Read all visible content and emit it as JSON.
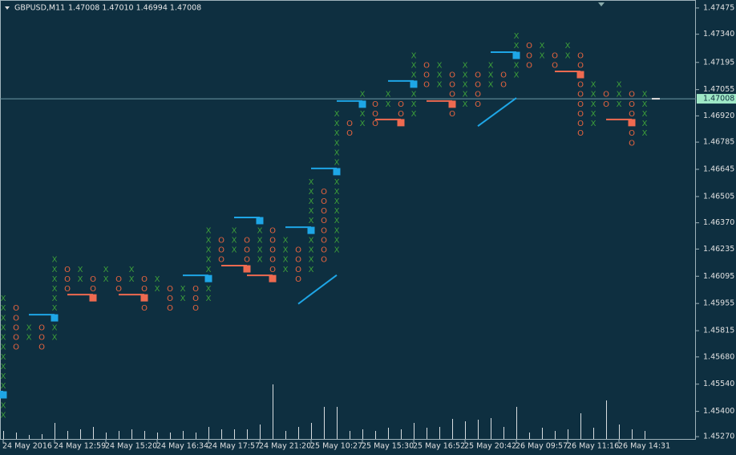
{
  "chart_data": {
    "type": "point-and-figure",
    "symbol": "GBPUSD,M11",
    "quote": "1.47008 1.47010 1.46994 1.47008",
    "box_size": 0.0005,
    "ylim": [
      1.45254,
      1.47516
    ],
    "yticks": [
      1.47475,
      {
        "value": 1.4734,
        "label": "1.47340"
      },
      1.47195,
      1.47055,
      {
        "value": 1.4692,
        "label": "1.46920"
      },
      1.46785,
      1.46645,
      1.46505,
      {
        "value": 1.4637,
        "label": "1.46370"
      },
      1.46235,
      1.46095,
      1.45955,
      1.45815,
      {
        "value": 1.4568,
        "label": "1.45680"
      },
      {
        "value": 1.4554,
        "label": "1.45540"
      },
      {
        "value": 1.454,
        "label": "1.45400"
      },
      {
        "value": 1.4527,
        "label": "1.45270"
      }
    ],
    "current_price": 1.47008,
    "colors": {
      "X": "#3d9e3a",
      "O": "#e8643f",
      "up": "#1ea6e6",
      "down": "#ee6a50",
      "volume": "#d8dde0",
      "price_line": "#6d9aa5"
    },
    "categories": [
      "24 May 2016",
      null,
      null,
      null,
      "24 May 12:59",
      null,
      null,
      null,
      "24 May 15:20",
      null,
      null,
      null,
      "24 May 16:34",
      null,
      null,
      null,
      "24 May 17:57",
      null,
      null,
      null,
      "24 May 21:20",
      null,
      null,
      null,
      "25 May 10:27",
      null,
      null,
      null,
      "25 May 15:30",
      null,
      null,
      null,
      "25 May 16:52",
      null,
      null,
      null,
      "25 May 20:42",
      null,
      null,
      null,
      "26 May 09:57",
      null,
      null,
      null,
      "26 May 11:16",
      null,
      null,
      null,
      "26 May 14:31",
      null,
      null
    ],
    "columns": [
      {
        "type": "X",
        "high": 1.4598,
        "low": 1.4538
      },
      {
        "type": "O",
        "high": 1.4593,
        "low": 1.4573
      },
      {
        "type": "X",
        "high": 1.4583,
        "low": 1.4578
      },
      {
        "type": "O",
        "high": 1.4583,
        "low": 1.4573
      },
      {
        "type": "X",
        "high": 1.4618,
        "low": 1.4578
      },
      {
        "type": "O",
        "high": 1.4613,
        "low": 1.4603
      },
      {
        "type": "X",
        "high": 1.4613,
        "low": 1.4608
      },
      {
        "type": "O",
        "high": 1.4608,
        "low": 1.4598
      },
      {
        "type": "X",
        "high": 1.4613,
        "low": 1.4608
      },
      {
        "type": "O",
        "high": 1.4608,
        "low": 1.4603
      },
      {
        "type": "X",
        "high": 1.4613,
        "low": 1.4608
      },
      {
        "type": "O",
        "high": 1.4608,
        "low": 1.4593
      },
      {
        "type": "X",
        "high": 1.4608,
        "low": 1.4603
      },
      {
        "type": "O",
        "high": 1.4603,
        "low": 1.4593
      },
      {
        "type": "X",
        "high": 1.4603,
        "low": 1.4598
      },
      {
        "type": "O",
        "high": 1.4603,
        "low": 1.4593
      },
      {
        "type": "X",
        "high": 1.4633,
        "low": 1.4598
      },
      {
        "type": "O",
        "high": 1.4628,
        "low": 1.4618
      },
      {
        "type": "X",
        "high": 1.4633,
        "low": 1.4623
      },
      {
        "type": "O",
        "high": 1.4628,
        "low": 1.4618
      },
      {
        "type": "X",
        "high": 1.4633,
        "low": 1.4618
      },
      {
        "type": "O",
        "high": 1.4633,
        "low": 1.4613
      },
      {
        "type": "X",
        "high": 1.4628,
        "low": 1.4613
      },
      {
        "type": "O",
        "high": 1.4623,
        "low": 1.4608
      },
      {
        "type": "X",
        "high": 1.4658,
        "low": 1.4613
      },
      {
        "type": "O",
        "high": 1.4653,
        "low": 1.4618
      },
      {
        "type": "X",
        "high": 1.4693,
        "low": 1.4623
      },
      {
        "type": "O",
        "high": 1.4688,
        "low": 1.4683
      },
      {
        "type": "X",
        "high": 1.4703,
        "low": 1.4688
      },
      {
        "type": "O",
        "high": 1.4698,
        "low": 1.4688
      },
      {
        "type": "X",
        "high": 1.4703,
        "low": 1.4698
      },
      {
        "type": "O",
        "high": 1.4698,
        "low": 1.4693
      },
      {
        "type": "X",
        "high": 1.4723,
        "low": 1.4693
      },
      {
        "type": "O",
        "high": 1.4718,
        "low": 1.4708
      },
      {
        "type": "X",
        "high": 1.4718,
        "low": 1.4708
      },
      {
        "type": "O",
        "high": 1.4713,
        "low": 1.4693
      },
      {
        "type": "X",
        "high": 1.4718,
        "low": 1.4698
      },
      {
        "type": "O",
        "high": 1.4713,
        "low": 1.4698
      },
      {
        "type": "X",
        "high": 1.4718,
        "low": 1.4708
      },
      {
        "type": "O",
        "high": 1.4713,
        "low": 1.4708
      },
      {
        "type": "X",
        "high": 1.4733,
        "low": 1.4713
      },
      {
        "type": "O",
        "high": 1.4728,
        "low": 1.4718
      },
      {
        "type": "X",
        "high": 1.4728,
        "low": 1.4723
      },
      {
        "type": "O",
        "high": 1.4723,
        "low": 1.4718
      },
      {
        "type": "X",
        "high": 1.4728,
        "low": 1.4723
      },
      {
        "type": "O",
        "high": 1.4723,
        "low": 1.4683
      },
      {
        "type": "X",
        "high": 1.4708,
        "low": 1.4688
      },
      {
        "type": "O",
        "high": 1.4703,
        "low": 1.4698
      },
      {
        "type": "X",
        "high": 1.4708,
        "low": 1.4698
      },
      {
        "type": "O",
        "high": 1.4703,
        "low": 1.4678
      },
      {
        "type": "X",
        "high": 1.4703,
        "low": 1.4683
      }
    ],
    "markers": [
      {
        "column": 0,
        "price": 1.45485,
        "kind": "up"
      },
      {
        "column": 4,
        "price": 1.45881,
        "kind": "up"
      },
      {
        "column": 7,
        "price": 1.45984,
        "kind": "down"
      },
      {
        "column": 11,
        "price": 1.45984,
        "kind": "down"
      },
      {
        "column": 16,
        "price": 1.46083,
        "kind": "up"
      },
      {
        "column": 19,
        "price": 1.46133,
        "kind": "down"
      },
      {
        "column": 20,
        "price": 1.46381,
        "kind": "up"
      },
      {
        "column": 21,
        "price": 1.46083,
        "kind": "down"
      },
      {
        "column": 24,
        "price": 1.46331,
        "kind": "up"
      },
      {
        "column": 26,
        "price": 1.46633,
        "kind": "up"
      },
      {
        "column": 28,
        "price": 1.4698,
        "kind": "up"
      },
      {
        "column": 31,
        "price": 1.46885,
        "kind": "down"
      },
      {
        "column": 32,
        "price": 1.47083,
        "kind": "up"
      },
      {
        "column": 35,
        "price": 1.4698,
        "kind": "down"
      },
      {
        "column": 40,
        "price": 1.47231,
        "kind": "up"
      },
      {
        "column": 45,
        "price": 1.47132,
        "kind": "down"
      },
      {
        "column": 49,
        "price": 1.46885,
        "kind": "down"
      }
    ],
    "trendlines": [
      {
        "from": [
          23,
          1.45953
        ],
        "to": [
          26,
          1.46101
        ]
      },
      {
        "from": [
          37,
          1.46867
        ],
        "to": [
          40,
          1.47012
        ]
      }
    ],
    "volumes": [
      10,
      8,
      5,
      6,
      20,
      10,
      12,
      15,
      8,
      10,
      12,
      10,
      8,
      8,
      10,
      8,
      15,
      12,
      12,
      12,
      18,
      68,
      10,
      15,
      20,
      40,
      40,
      10,
      12,
      10,
      14,
      12,
      20,
      14,
      15,
      25,
      22,
      24,
      26,
      15,
      40,
      8,
      14,
      10,
      12,
      32,
      14,
      48,
      18,
      12,
      10
    ]
  }
}
